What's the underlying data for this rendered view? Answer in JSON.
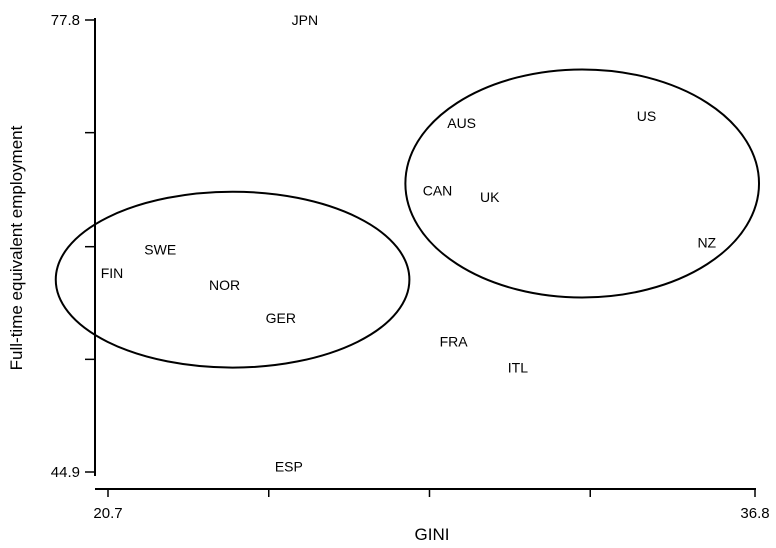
{
  "chart_data": {
    "type": "scatter",
    "title": "",
    "xlabel": "GINI",
    "ylabel": "Full-time equivalent employment",
    "xlim": [
      20.7,
      36.8
    ],
    "ylim": [
      44.9,
      77.8
    ],
    "x_tick_labels": [
      "20.7",
      "36.8"
    ],
    "y_tick_labels": [
      "77.8",
      "44.9"
    ],
    "x_ticks": [
      20.7,
      24.7,
      28.7,
      32.7,
      36.8
    ],
    "y_ticks": [
      44.9,
      53.1,
      61.3,
      69.6,
      77.8
    ],
    "grid": false,
    "points": [
      {
        "label": "JPN",
        "x": 25.6,
        "y": 77.8
      },
      {
        "label": "US",
        "x": 34.1,
        "y": 70.8
      },
      {
        "label": "AUS",
        "x": 29.5,
        "y": 70.3
      },
      {
        "label": "CAN",
        "x": 28.9,
        "y": 65.4
      },
      {
        "label": "UK",
        "x": 30.2,
        "y": 64.9
      },
      {
        "label": "NZ",
        "x": 35.6,
        "y": 61.6
      },
      {
        "label": "SWE",
        "x": 22.0,
        "y": 61.1
      },
      {
        "label": "FIN",
        "x": 20.8,
        "y": 59.4
      },
      {
        "label": "NOR",
        "x": 23.6,
        "y": 58.5
      },
      {
        "label": "GER",
        "x": 25.0,
        "y": 56.1
      },
      {
        "label": "FRA",
        "x": 29.3,
        "y": 54.4
      },
      {
        "label": "ITL",
        "x": 30.9,
        "y": 52.5
      },
      {
        "label": "ESP",
        "x": 25.2,
        "y": 45.3
      }
    ],
    "clusters": [
      {
        "cx": 23.8,
        "cy": 58.9,
        "rx": 4.4,
        "ry": 6.4
      },
      {
        "cx": 32.5,
        "cy": 65.9,
        "rx": 4.4,
        "ry": 8.3
      }
    ]
  }
}
